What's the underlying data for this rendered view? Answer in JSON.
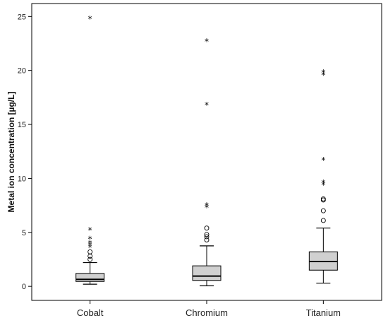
{
  "chart_data": {
    "type": "boxplot",
    "ylabel": "Metal ion concentration [µg/L]",
    "xlabel": "",
    "ylim": [
      -1.3,
      26.2
    ],
    "yticks": [
      0,
      5,
      10,
      15,
      20,
      25
    ],
    "categories": [
      "Cobalt",
      "Chromium",
      "Titanium"
    ],
    "grid": false,
    "box_color": "#d0d0d0",
    "line_color": "#000000",
    "boxes": [
      {
        "name": "Cobalt",
        "whisker_low": 0.2,
        "q1": 0.45,
        "median": 0.65,
        "q3": 1.2,
        "whisker_high": 2.2,
        "outliers_circle": [
          2.5,
          2.8,
          3.2
        ],
        "outliers_star": [
          3.6,
          3.8,
          4.0,
          4.4,
          5.2,
          24.8
        ]
      },
      {
        "name": "Chromium",
        "whisker_low": 0.05,
        "q1": 0.55,
        "median": 0.95,
        "q3": 1.9,
        "whisker_high": 3.75,
        "outliers_circle": [
          4.3,
          4.6,
          4.8,
          5.4
        ],
        "outliers_star": [
          7.3,
          7.5,
          16.8,
          22.7
        ]
      },
      {
        "name": "Titanium",
        "whisker_low": 0.3,
        "q1": 1.5,
        "median": 2.3,
        "q3": 3.2,
        "whisker_high": 5.4,
        "outliers_circle": [
          6.1,
          7.0,
          8.0,
          8.1
        ],
        "outliers_star": [
          9.4,
          9.6,
          11.7,
          19.6,
          19.8
        ]
      }
    ]
  }
}
